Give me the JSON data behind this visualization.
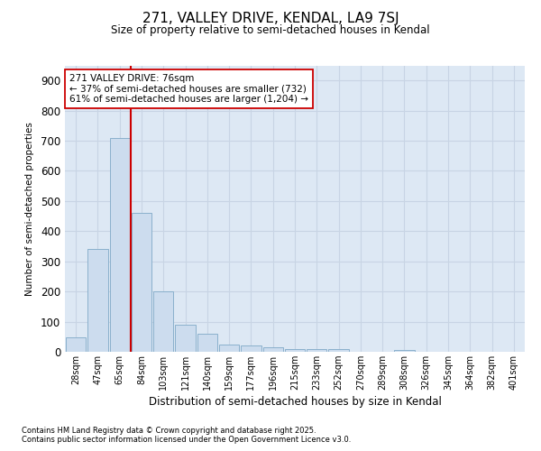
{
  "title1": "271, VALLEY DRIVE, KENDAL, LA9 7SJ",
  "title2": "Size of property relative to semi-detached houses in Kendal",
  "xlabel": "Distribution of semi-detached houses by size in Kendal",
  "ylabel": "Number of semi-detached properties",
  "categories": [
    "28sqm",
    "47sqm",
    "65sqm",
    "84sqm",
    "103sqm",
    "121sqm",
    "140sqm",
    "159sqm",
    "177sqm",
    "196sqm",
    "215sqm",
    "233sqm",
    "252sqm",
    "270sqm",
    "289sqm",
    "308sqm",
    "326sqm",
    "345sqm",
    "364sqm",
    "382sqm",
    "401sqm"
  ],
  "values": [
    47,
    340,
    710,
    460,
    200,
    90,
    60,
    25,
    20,
    15,
    10,
    10,
    8,
    0,
    0,
    5,
    0,
    0,
    0,
    0,
    0
  ],
  "bar_color": "#ccdcee",
  "bar_edge_color": "#8ab0cc",
  "grid_color": "#c8d4e4",
  "bg_color": "#dde8f4",
  "vline_x_index": 2.5,
  "vline_color": "#cc0000",
  "annotation_text": "271 VALLEY DRIVE: 76sqm\n← 37% of semi-detached houses are smaller (732)\n61% of semi-detached houses are larger (1,204) →",
  "annotation_box_color": "#ffffff",
  "annotation_box_edge": "#cc0000",
  "footnote1": "Contains HM Land Registry data © Crown copyright and database right 2025.",
  "footnote2": "Contains public sector information licensed under the Open Government Licence v3.0.",
  "ylim": [
    0,
    950
  ],
  "yticks": [
    0,
    100,
    200,
    300,
    400,
    500,
    600,
    700,
    800,
    900
  ]
}
